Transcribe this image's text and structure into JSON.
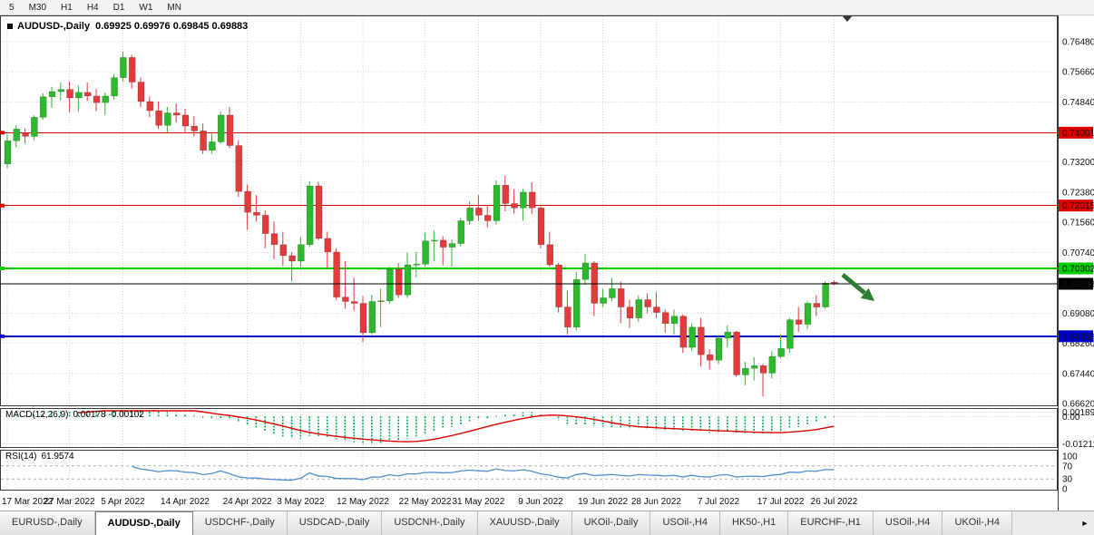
{
  "toolbar": {
    "timeframes": [
      "5",
      "M30",
      "H1",
      "H4",
      "D1",
      "W1",
      "MN"
    ]
  },
  "chart": {
    "title": "AUDUSD-,Daily",
    "ohlc": "0.69925 0.69976 0.69845 0.69883"
  },
  "icons": {
    "tab_scroll_right": "►",
    "shift_marker": "▼"
  },
  "price_axis": {
    "gridlines": [
      "0.76480",
      "0.75660",
      "0.74840",
      "0.73200",
      "0.72380",
      "0.71560",
      "0.70740",
      "0.69080",
      "0.68260",
      "0.67440",
      "0.66620"
    ]
  },
  "colors": {
    "bull": "#2db92d",
    "bear": "#e33b3b",
    "grid": "#d6d6d6",
    "panel_border": "#3a3a3a",
    "current_line": "#000000"
  },
  "chart_data": {
    "type": "candlestick",
    "symbol": "AUDUSD",
    "timeframe": "Daily",
    "y_range": [
      0.6662,
      0.7648
    ],
    "x_labels": [
      {
        "i": 0,
        "label": "17 Mar 2022"
      },
      {
        "i": 7,
        "label": "27 Mar 2022"
      },
      {
        "i": 13,
        "label": "5 Apr 2022"
      },
      {
        "i": 20,
        "label": "14 Apr 2022"
      },
      {
        "i": 27,
        "label": "24 Apr 2022"
      },
      {
        "i": 33,
        "label": "3 May 2022"
      },
      {
        "i": 40,
        "label": "12 May 2022"
      },
      {
        "i": 47,
        "label": "22 May 2022"
      },
      {
        "i": 53,
        "label": "31 May 2022"
      },
      {
        "i": 60,
        "label": "9 Jun 2022"
      },
      {
        "i": 67,
        "label": "19 Jun 2022"
      },
      {
        "i": 73,
        "label": "28 Jun 2022"
      },
      {
        "i": 80,
        "label": "7 Jul 2022"
      },
      {
        "i": 87,
        "label": "17 Jul 2022"
      },
      {
        "i": 93,
        "label": "26 Jul 2022"
      }
    ],
    "candles": [
      [
        0.7315,
        0.7395,
        0.7303,
        0.7378
      ],
      [
        0.7378,
        0.742,
        0.736,
        0.741
      ],
      [
        0.7398,
        0.7412,
        0.737,
        0.739
      ],
      [
        0.739,
        0.7447,
        0.738,
        0.7442
      ],
      [
        0.7442,
        0.7508,
        0.7435,
        0.7498
      ],
      [
        0.7498,
        0.7525,
        0.7468,
        0.7512
      ],
      [
        0.7512,
        0.7537,
        0.7488,
        0.7518
      ],
      [
        0.7518,
        0.754,
        0.7455,
        0.7495
      ],
      [
        0.7495,
        0.7528,
        0.7458,
        0.751
      ],
      [
        0.751,
        0.7537,
        0.7487,
        0.75
      ],
      [
        0.75,
        0.752,
        0.7458,
        0.7482
      ],
      [
        0.7482,
        0.751,
        0.7448,
        0.75
      ],
      [
        0.75,
        0.756,
        0.749,
        0.755
      ],
      [
        0.755,
        0.7621,
        0.754,
        0.7605
      ],
      [
        0.7605,
        0.7612,
        0.752,
        0.7538
      ],
      [
        0.7538,
        0.755,
        0.747,
        0.7485
      ],
      [
        0.7485,
        0.7499,
        0.7442,
        0.746
      ],
      [
        0.746,
        0.7485,
        0.741,
        0.742
      ],
      [
        0.742,
        0.747,
        0.74,
        0.7454
      ],
      [
        0.7454,
        0.748,
        0.7428,
        0.7448
      ],
      [
        0.7448,
        0.7465,
        0.7398,
        0.7418
      ],
      [
        0.7418,
        0.7445,
        0.739,
        0.7405
      ],
      [
        0.7405,
        0.7425,
        0.7342,
        0.7352
      ],
      [
        0.7352,
        0.74,
        0.7343,
        0.7375
      ],
      [
        0.7375,
        0.7458,
        0.737,
        0.7448
      ],
      [
        0.7448,
        0.747,
        0.7358,
        0.7365
      ],
      [
        0.7365,
        0.738,
        0.7225,
        0.724
      ],
      [
        0.724,
        0.7259,
        0.7135,
        0.7183
      ],
      [
        0.7183,
        0.723,
        0.7158,
        0.7175
      ],
      [
        0.7175,
        0.7188,
        0.7085,
        0.7125
      ],
      [
        0.7125,
        0.7158,
        0.7055,
        0.7095
      ],
      [
        0.7095,
        0.713,
        0.7037,
        0.7065
      ],
      [
        0.7065,
        0.7075,
        0.6995,
        0.705
      ],
      [
        0.705,
        0.7115,
        0.7028,
        0.7095
      ],
      [
        0.7095,
        0.7268,
        0.7088,
        0.7255
      ],
      [
        0.7255,
        0.7266,
        0.7107,
        0.7112
      ],
      [
        0.7112,
        0.713,
        0.703,
        0.7075
      ],
      [
        0.7075,
        0.7085,
        0.6945,
        0.6952
      ],
      [
        0.6952,
        0.705,
        0.692,
        0.694
      ],
      [
        0.694,
        0.7005,
        0.6915,
        0.6935
      ],
      [
        0.6935,
        0.6955,
        0.6829,
        0.6855
      ],
      [
        0.6855,
        0.6958,
        0.685,
        0.694
      ],
      [
        0.694,
        0.6975,
        0.687,
        0.6942
      ],
      [
        0.6942,
        0.7035,
        0.6935,
        0.7028
      ],
      [
        0.7028,
        0.7045,
        0.695,
        0.6958
      ],
      [
        0.6958,
        0.7073,
        0.695,
        0.704
      ],
      [
        0.704,
        0.7075,
        0.7005,
        0.7042
      ],
      [
        0.7042,
        0.7127,
        0.7035,
        0.7105
      ],
      [
        0.7105,
        0.7133,
        0.705,
        0.7107
      ],
      [
        0.7107,
        0.7118,
        0.7038,
        0.7088
      ],
      [
        0.7088,
        0.711,
        0.7035,
        0.7098
      ],
      [
        0.7098,
        0.7168,
        0.709,
        0.716
      ],
      [
        0.716,
        0.7213,
        0.715,
        0.7195
      ],
      [
        0.7195,
        0.723,
        0.716,
        0.7175
      ],
      [
        0.7175,
        0.7203,
        0.7142,
        0.716
      ],
      [
        0.716,
        0.727,
        0.715,
        0.7257
      ],
      [
        0.7257,
        0.7283,
        0.7186,
        0.7207
      ],
      [
        0.7207,
        0.7245,
        0.718,
        0.7195
      ],
      [
        0.7195,
        0.7247,
        0.716,
        0.7238
      ],
      [
        0.7238,
        0.7265,
        0.7178,
        0.7195
      ],
      [
        0.7195,
        0.72,
        0.7085,
        0.7095
      ],
      [
        0.7095,
        0.713,
        0.7035,
        0.704
      ],
      [
        0.704,
        0.7045,
        0.691,
        0.6925
      ],
      [
        0.6925,
        0.697,
        0.685,
        0.687
      ],
      [
        0.687,
        0.702,
        0.686,
        0.7
      ],
      [
        0.7,
        0.7069,
        0.6985,
        0.7045
      ],
      [
        0.7045,
        0.705,
        0.69,
        0.6935
      ],
      [
        0.6935,
        0.6975,
        0.6925,
        0.695
      ],
      [
        0.695,
        0.7005,
        0.694,
        0.6975
      ],
      [
        0.6975,
        0.6995,
        0.688,
        0.6925
      ],
      [
        0.6925,
        0.6945,
        0.6868,
        0.6895
      ],
      [
        0.6895,
        0.6957,
        0.6885,
        0.6945
      ],
      [
        0.6945,
        0.6963,
        0.6908,
        0.6925
      ],
      [
        0.6925,
        0.6965,
        0.6895,
        0.691
      ],
      [
        0.691,
        0.6918,
        0.6855,
        0.688
      ],
      [
        0.688,
        0.6918,
        0.685,
        0.69
      ],
      [
        0.69,
        0.6905,
        0.68,
        0.6815
      ],
      [
        0.6815,
        0.688,
        0.6805,
        0.687
      ],
      [
        0.687,
        0.6895,
        0.6762,
        0.6795
      ],
      [
        0.6795,
        0.681,
        0.6755,
        0.678
      ],
      [
        0.678,
        0.6848,
        0.677,
        0.684
      ],
      [
        0.684,
        0.6875,
        0.6815,
        0.6857
      ],
      [
        0.6857,
        0.686,
        0.6735,
        0.674
      ],
      [
        0.674,
        0.6775,
        0.6712,
        0.6758
      ],
      [
        0.6758,
        0.6788,
        0.6725,
        0.6765
      ],
      [
        0.6765,
        0.677,
        0.6681,
        0.6745
      ],
      [
        0.6745,
        0.6805,
        0.673,
        0.679
      ],
      [
        0.679,
        0.685,
        0.6785,
        0.6812
      ],
      [
        0.6812,
        0.6895,
        0.68,
        0.689
      ],
      [
        0.689,
        0.6925,
        0.6857,
        0.6878
      ],
      [
        0.6878,
        0.694,
        0.6865,
        0.6935
      ],
      [
        0.6935,
        0.6958,
        0.69,
        0.6925
      ],
      [
        0.6925,
        0.6995,
        0.692,
        0.699
      ],
      [
        0.69925,
        0.69976,
        0.69845,
        0.69883
      ]
    ],
    "hlines": [
      {
        "price": 0.74001,
        "label": "0.74001",
        "color": "#e00000",
        "width": 1
      },
      {
        "price": 0.72015,
        "label": "0.72015",
        "color": "#e00000",
        "width": 1
      },
      {
        "price": 0.70302,
        "label": "0.70302",
        "color": "#00cc00",
        "width": 2
      },
      {
        "price": 0.68453,
        "label": "0.68453",
        "color": "#0000cc",
        "width": 2
      }
    ],
    "current_price": {
      "value": 0.69883,
      "label": "0.69883",
      "color": "#000000"
    },
    "annotations": [
      {
        "type": "arrow-down-right",
        "color": "#2e7d32"
      },
      {
        "type": "chart-shift-marker",
        "color": "#333333"
      }
    ],
    "indicators": [
      {
        "name": "MACD",
        "params": [
          12,
          26,
          9
        ],
        "label": "MACD(12,26,9)",
        "values_label": "0.00178 -0.00102",
        "axis_labels": [
          "0.00189",
          "0.00",
          "-0.01212"
        ],
        "axis_values": [
          0.00189,
          0,
          -0.01212
        ],
        "hist_color": "#00b050",
        "signal_color": "#e00000",
        "value_range": [
          -0.0135,
          0.0025
        ]
      },
      {
        "name": "RSI",
        "params": [
          14
        ],
        "label": "RSI(14)",
        "values_label": "61.9574",
        "axis_labels": [
          "100",
          "70",
          "30",
          "0"
        ],
        "axis_values": [
          100,
          70,
          30,
          0
        ],
        "levels": [
          70,
          30
        ],
        "line_color": "#4f8fd0"
      }
    ]
  },
  "tabs": [
    {
      "label": "EURUSD-,Daily",
      "active": false
    },
    {
      "label": "AUDUSD-,Daily",
      "active": true
    },
    {
      "label": "USDCHF-,Daily",
      "active": false
    },
    {
      "label": "USDCAD-,Daily",
      "active": false
    },
    {
      "label": "USDCNH-,Daily",
      "active": false
    },
    {
      "label": "XAUUSD-,Daily",
      "active": false
    },
    {
      "label": "UKOil-,Daily",
      "active": false
    },
    {
      "label": "USOil-,H4",
      "active": false
    },
    {
      "label": "HK50-,H1",
      "active": false
    },
    {
      "label": "EURCHF-,H1",
      "active": false
    },
    {
      "label": "USOil-,H4",
      "active": false
    },
    {
      "label": "UKOil-,H4",
      "active": false
    }
  ]
}
